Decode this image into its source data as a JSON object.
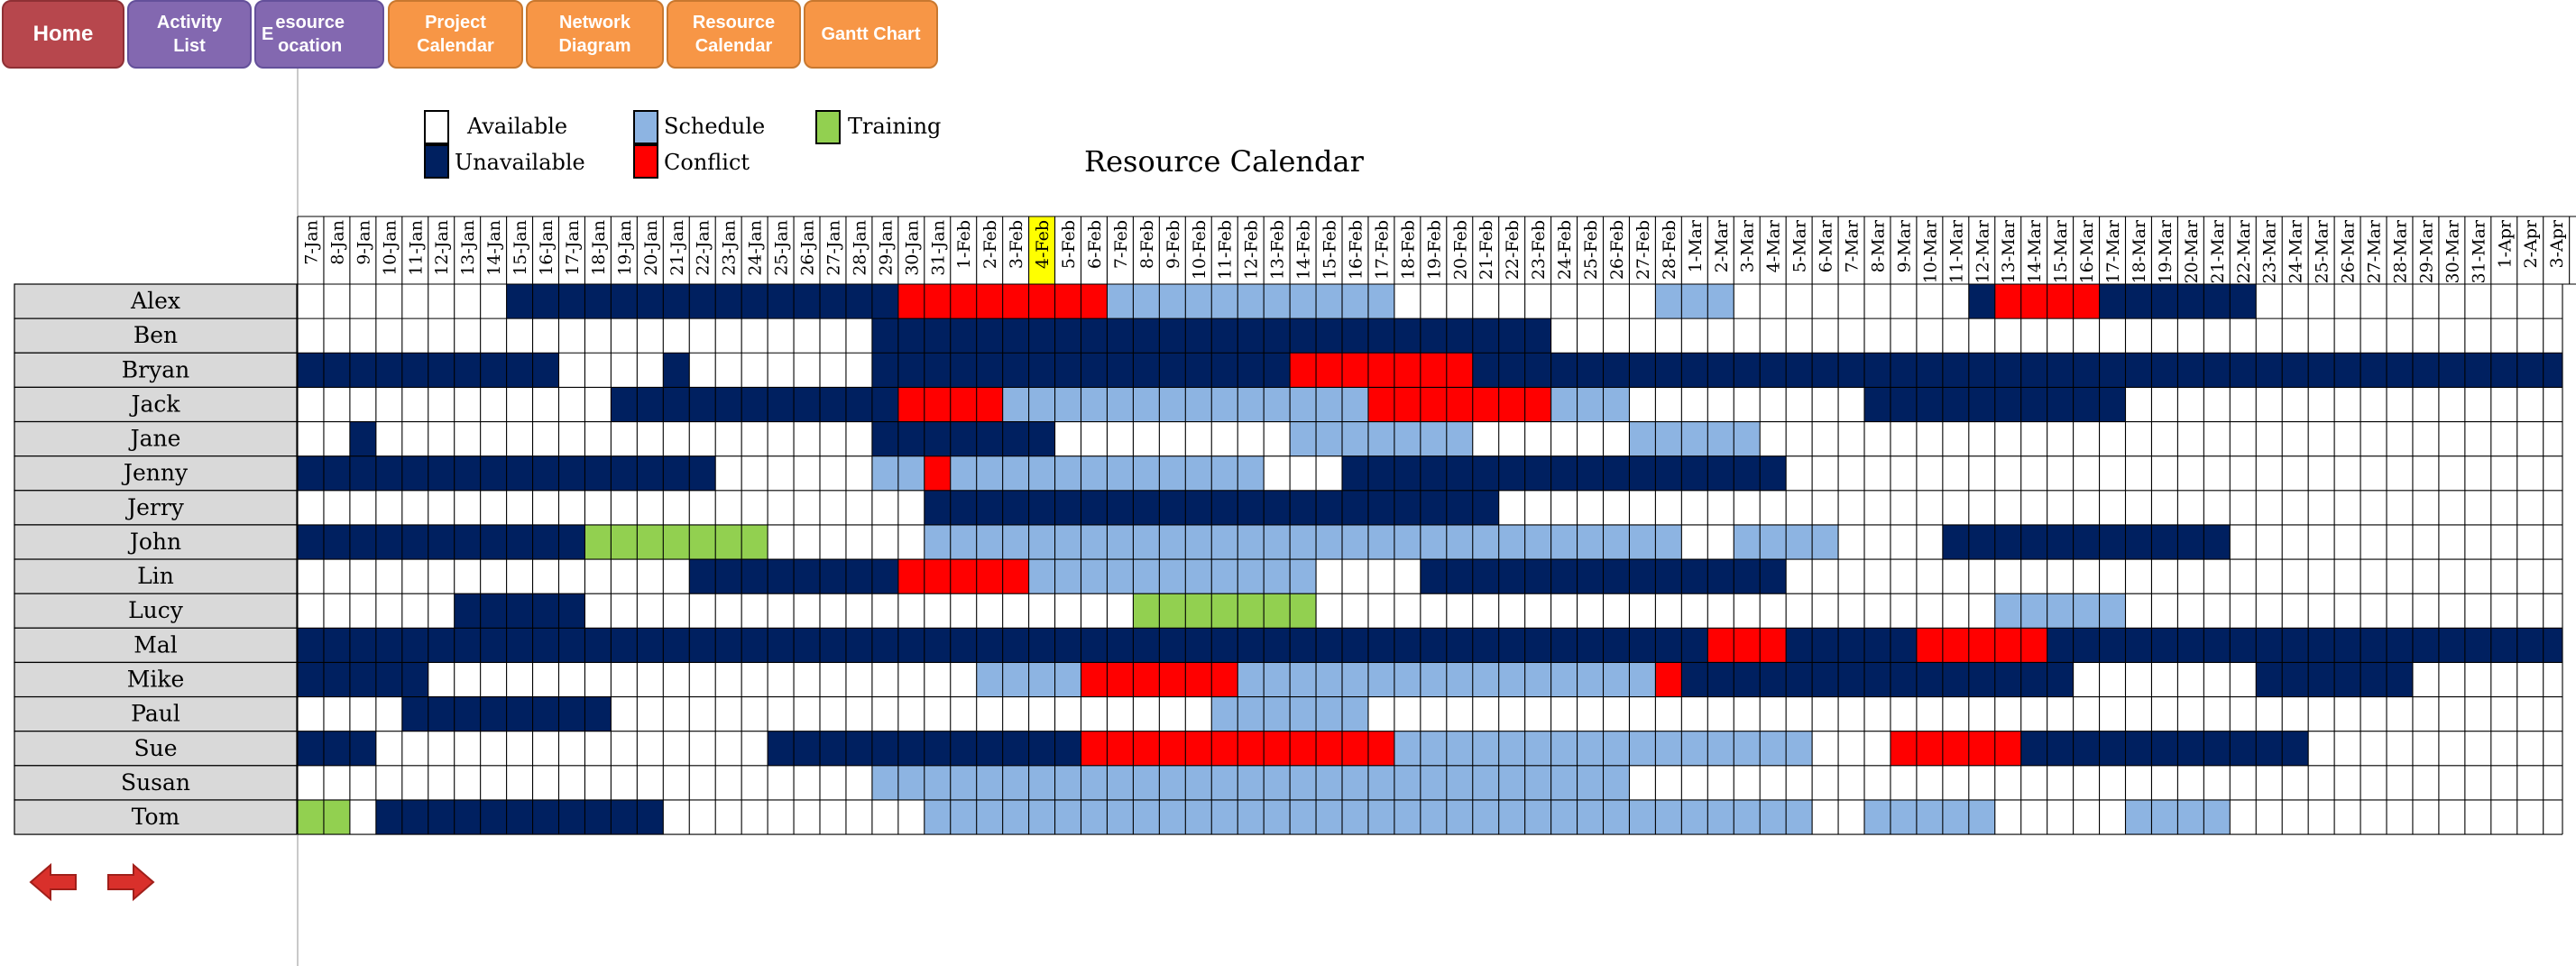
{
  "nav": {
    "home": "Home",
    "activity_list": "Activity\nList",
    "resource_allocation": "esource\nocation",
    "resource_allocation_prefix": "E",
    "project_calendar": "Project\nCalendar",
    "network_diagram": "Network\nDiagram",
    "resource_calendar": "Resource\nCalendar",
    "gantt_chart": "Gantt Chart"
  },
  "legend": {
    "available": "Available",
    "schedule": "Schedule",
    "training": "Training",
    "unavailable": "Unavailable",
    "conflict": "Conflict"
  },
  "title": "Resource Calendar",
  "colors": {
    "available": "#ffffff",
    "unavailable": "#002060",
    "schedule": "#8db4e2",
    "conflict": "#ff0000",
    "training": "#92d050",
    "highlight_date": "#ffff00",
    "name_bg": "#d9d9d9",
    "grid_line": "#000000"
  },
  "highlighted_date": "4-Feb",
  "dates": [
    "7-Jan",
    "8-Jan",
    "9-Jan",
    "10-Jan",
    "11-Jan",
    "12-Jan",
    "13-Jan",
    "14-Jan",
    "15-Jan",
    "16-Jan",
    "17-Jan",
    "18-Jan",
    "19-Jan",
    "20-Jan",
    "21-Jan",
    "22-Jan",
    "23-Jan",
    "24-Jan",
    "25-Jan",
    "26-Jan",
    "27-Jan",
    "28-Jan",
    "29-Jan",
    "30-Jan",
    "31-Jan",
    "1-Feb",
    "2-Feb",
    "3-Feb",
    "4-Feb",
    "5-Feb",
    "6-Feb",
    "7-Feb",
    "8-Feb",
    "9-Feb",
    "10-Feb",
    "11-Feb",
    "12-Feb",
    "13-Feb",
    "14-Feb",
    "15-Feb",
    "16-Feb",
    "17-Feb",
    "18-Feb",
    "19-Feb",
    "20-Feb",
    "21-Feb",
    "22-Feb",
    "23-Feb",
    "24-Feb",
    "25-Feb",
    "26-Feb",
    "27-Feb",
    "28-Feb",
    "1-Mar",
    "2-Mar",
    "3-Mar",
    "4-Mar",
    "5-Mar",
    "6-Mar",
    "7-Mar",
    "8-Mar",
    "9-Mar",
    "10-Mar",
    "11-Mar",
    "12-Mar",
    "13-Mar",
    "14-Mar",
    "15-Mar",
    "16-Mar",
    "17-Mar",
    "18-Mar",
    "19-Mar",
    "20-Mar",
    "21-Mar",
    "22-Mar",
    "23-Mar",
    "24-Mar",
    "25-Mar",
    "26-Mar",
    "27-Mar",
    "28-Mar",
    "29-Mar",
    "30-Mar",
    "31-Mar",
    "1-Apr",
    "2-Apr",
    "3-Apr"
  ],
  "resources": [
    {
      "name": "Alex",
      "row": "........UUUUUUUUUUUUUUUCCCCCCCCSSSSSSSSSSS..........SSS.........UCCCCUUUUUU............."
    },
    {
      "name": "Ben",
      "row": "......................UUUUUUUUUUUUUUUUUUUUUUUUUU.................................................................."
    },
    {
      "name": "Bryan",
      "row": "UUUUUUUUUU....U.......UUUUUUUUUUUUUUUUCCCCCCCUUUUUUUUUUUUUUUUUUUUUUUUUUUUUUUUUUUUUUUUUUUUUUUUUUUUUUUU"
    },
    {
      "name": "Jack",
      "row": "............UUUUUUUUUUUCCCCSSSSSSSSSSSSSSCCCCCCCSSS.........UUUUUUUUUU................."
    },
    {
      "name": "Jane",
      "row": "..U...................UUUUUUU.........SSSSSSS......SSSSS........................."
    },
    {
      "name": "Jenny",
      "row": "UUUUUUUUUUUUUUUU......SSCSSSSSSSSSSSS...UUUUUUUUUUUUUUUUU.................................."
    },
    {
      "name": "Jerry",
      "row": "........................UUUUUUUUUUUUUUUUUUUUUU.........................................................."
    },
    {
      "name": "John",
      "row": "UUUUUUUUUUUTTTTTTT......SSSSSSSSSSSSSSSSSSSSSSSSSSSSS..SSSS....UUUUUUUUUUU................"
    },
    {
      "name": "Lin",
      "row": "...............UUUUUUUUCCCCCSSSSSSSSSSS....UUUUUUUUUUUUUU..................................."
    },
    {
      "name": "Lucy",
      "row": "......UUUUU.....................TTTTTTT..........................SSSSS.............................."
    },
    {
      "name": "Mal",
      "row": "UUUUUUUUUUUUUUUUUUUUUUUUUUUUUUUUUUUUUUUUUUUUUUUUUUUUUUCCCUUUUUCCCCCUUUUUUUUUUUUUUUUUUUUUUUUUUUUUUUUUUUUUU"
    },
    {
      "name": "Mike",
      "row": "UUUUU.....................SSSSCCCCCCSSSSSSSSSSSSSSSSCUUUUUUUUUUUUUUU.......UUUUUU..............."
    },
    {
      "name": "Paul",
      "row": "....UUUUUUUU.......................SSSSSS.................................................."
    },
    {
      "name": "Sue",
      "row": "UUU...............UUUUUUUUUUUUCCCCCCCCCCCCSSSSSSSSSSSSSSSS...CCCCCUUUUUUUUUUU................."
    },
    {
      "name": "Susan",
      "row": "......................SSSSSSSSSSSSSSSSSSSSSSSSSSSSS........................................."
    },
    {
      "name": "Tom",
      "row": "TT.UUUUUUUUUUU..........SSSSSSSSSSSSSSSSSSSSSSSSSSSSSSSSSS..SSSSS.....SSSS.................."
    }
  ]
}
